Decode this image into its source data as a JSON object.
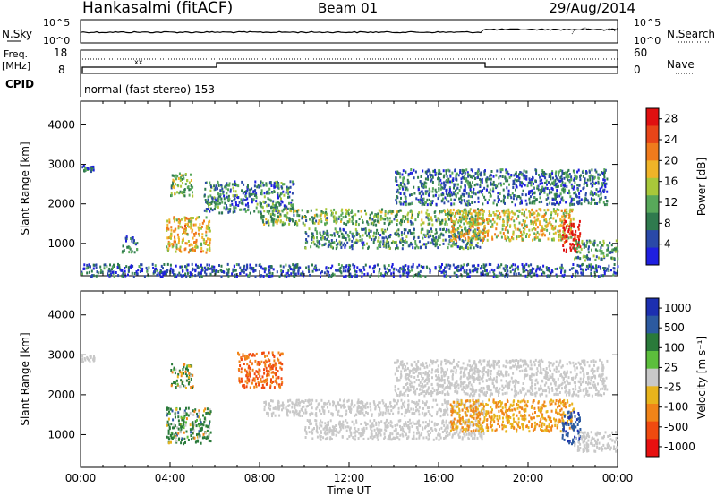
{
  "header": {
    "station": "Hankasalmi (fitACF)",
    "beam": "Beam 01",
    "date": "29/Aug/2014"
  },
  "summary_panel": {
    "left_labels": {
      "nsky": "N.Sky",
      "freq": "Freq.",
      "freq_unit": "[MHz]",
      "cpid": "CPID"
    },
    "right_labels": {
      "nsearch": "N.Search",
      "nave": "Nave"
    },
    "left_ticks_noise": [
      "10^5",
      "10^0"
    ],
    "right_ticks_noise": [
      "10^5",
      "10^0"
    ],
    "left_ticks_freq": [
      "18",
      "8"
    ],
    "right_ticks_nave": [
      "60",
      "0"
    ],
    "cpid_text": "normal (fast stereo) 153"
  },
  "colors": {
    "power_scale": [
      "#1f1fe0",
      "#2a49a8",
      "#2f7a4e",
      "#58a85a",
      "#a8c83a",
      "#f0b428",
      "#f07b1c",
      "#e84518",
      "#e01010"
    ],
    "velocity_scale": [
      "#1c2fb0",
      "#2c5aa0",
      "#2a7a3a",
      "#5cbe3c",
      "#c8c8c8",
      "#e8b41c",
      "#f08418",
      "#f04a10",
      "#e81010"
    ],
    "ground_scatter": "#c8c8c8"
  },
  "chart_data": [
    {
      "type": "heatmap",
      "name_of_quantity": "Power",
      "colorbar_label": "Power [dB]",
      "colorbar_ticks": [
        "4",
        "8",
        "12",
        "16",
        "20",
        "24",
        "28"
      ],
      "ylabel": "Slant Range [km]",
      "yticks": [
        "1000",
        "2000",
        "3000",
        "4000"
      ],
      "ylim": [
        180,
        4600
      ],
      "xlim_hours": [
        0,
        24
      ],
      "clim": [
        0,
        30
      ],
      "regions": [
        {
          "t0": 0.0,
          "t1": 0.6,
          "r0": 2850,
          "r1": 3000,
          "v": 6
        },
        {
          "t0": 1.8,
          "t1": 2.5,
          "r0": 800,
          "r1": 1200,
          "v": 8
        },
        {
          "t0": 3.8,
          "t1": 5.8,
          "r0": 800,
          "r1": 1700,
          "v": 18
        },
        {
          "t0": 4.0,
          "t1": 5.0,
          "r0": 2200,
          "r1": 2800,
          "v": 12
        },
        {
          "t0": 5.5,
          "t1": 9.5,
          "r0": 1800,
          "r1": 2600,
          "v": 8
        },
        {
          "t0": 8.0,
          "t1": 18.0,
          "r0": 1500,
          "r1": 1900,
          "v": 12
        },
        {
          "t0": 10.0,
          "t1": 18.0,
          "r0": 900,
          "r1": 1400,
          "v": 9
        },
        {
          "t0": 14.0,
          "t1": 23.5,
          "r0": 2000,
          "r1": 2900,
          "v": 7
        },
        {
          "t0": 16.5,
          "t1": 22.0,
          "r0": 1100,
          "r1": 1900,
          "v": 17
        },
        {
          "t0": 21.5,
          "t1": 22.3,
          "r0": 800,
          "r1": 1600,
          "v": 29
        },
        {
          "t0": 22.0,
          "t1": 24.0,
          "r0": 600,
          "r1": 1100,
          "v": 10
        },
        {
          "t0": 0.0,
          "t1": 24.0,
          "r0": 180,
          "r1": 500,
          "v": 5
        }
      ]
    },
    {
      "type": "heatmap",
      "name_of_quantity": "Velocity",
      "colorbar_label": "Velocity [m s⁻¹]",
      "colorbar_ticks": [
        "1000",
        "500",
        "100",
        "25",
        "-25",
        "-100",
        "-500",
        "-1000"
      ],
      "ylabel": "Slant Range [km]",
      "yticks": [
        "1000",
        "2000",
        "3000",
        "4000"
      ],
      "ylim": [
        180,
        4600
      ],
      "xlabel": "Time UT",
      "xticks": [
        "00:00",
        "04:00",
        "08:00",
        "12:00",
        "16:00",
        "20:00",
        "00:00"
      ],
      "xlim_hours": [
        0,
        24
      ],
      "regions": [
        {
          "t0": 0.0,
          "t1": 0.6,
          "r0": 2850,
          "r1": 3000,
          "v": 0
        },
        {
          "t0": 3.8,
          "t1": 5.8,
          "r0": 800,
          "r1": 1700,
          "v": 120
        },
        {
          "t0": 4.0,
          "t1": 5.0,
          "r0": 2200,
          "r1": 2800,
          "v": 80
        },
        {
          "t0": 7.0,
          "t1": 9.0,
          "r0": 2200,
          "r1": 3100,
          "v": -300
        },
        {
          "t0": 8.0,
          "t1": 18.0,
          "r0": 1500,
          "r1": 1900,
          "v": 0
        },
        {
          "t0": 10.0,
          "t1": 18.0,
          "r0": 900,
          "r1": 1400,
          "v": 0
        },
        {
          "t0": 14.0,
          "t1": 23.5,
          "r0": 2000,
          "r1": 2900,
          "v": 0
        },
        {
          "t0": 16.5,
          "t1": 22.0,
          "r0": 1100,
          "r1": 1900,
          "v": -60
        },
        {
          "t0": 21.5,
          "t1": 22.3,
          "r0": 800,
          "r1": 1600,
          "v": 600
        },
        {
          "t0": 22.0,
          "t1": 24.0,
          "r0": 600,
          "r1": 1100,
          "v": 0
        }
      ]
    }
  ]
}
